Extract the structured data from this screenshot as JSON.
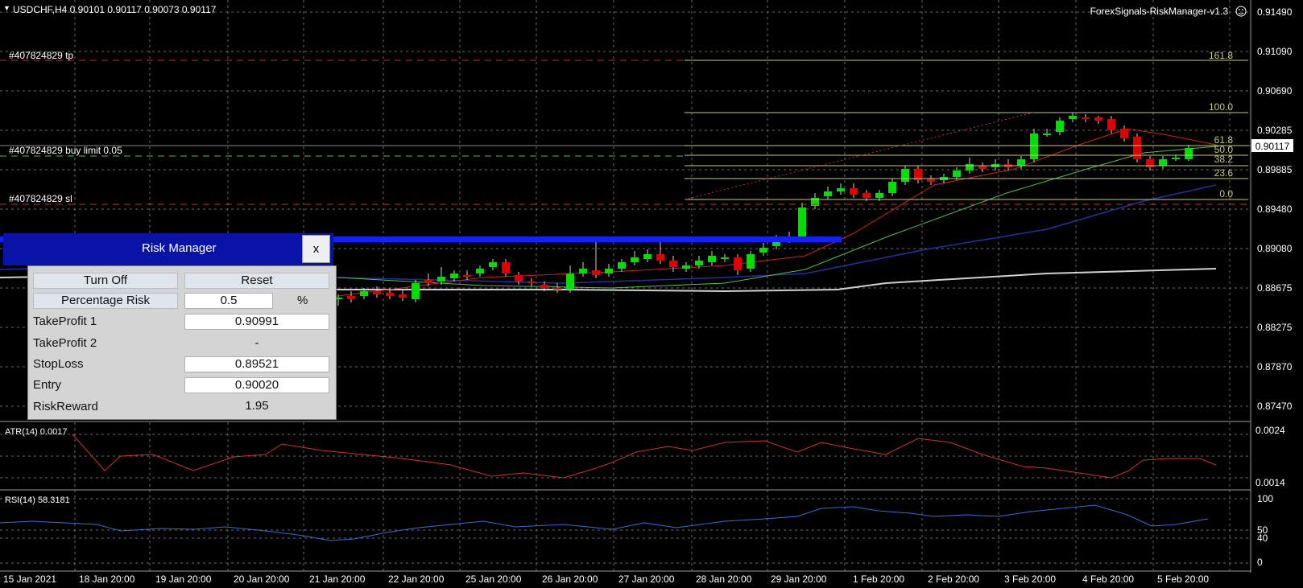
{
  "header": {
    "symbol_info": "USDCHF,H4  0.90101 0.90117 0.90073 0.90117",
    "indicator_name": "ForexSignals-RiskManager-v1.3"
  },
  "price_axis": {
    "labels": [
      "0.91490",
      "0.91090",
      "0.90690",
      "0.90285",
      "0.89885",
      "0.89480",
      "0.89080",
      "0.88675",
      "0.88275",
      "0.87870",
      "0.87470"
    ],
    "current_price": "0.90117"
  },
  "order_lines": {
    "tp": "#407824829 tp",
    "entry": "#407824829 buy limit 0.05",
    "sl": "#407824829 sl"
  },
  "fibonacci": [
    "161.8",
    "100.0",
    "61.8",
    "50.0",
    "38.2",
    "23.6",
    "0.0"
  ],
  "atr_panel": {
    "label": "ATR(14) 0.0017",
    "axis_top": "0.0024",
    "axis_bottom": "0.0014"
  },
  "rsi_panel": {
    "label": "RSI(14) 58.3181",
    "axis_labels": [
      "100",
      "50",
      "40",
      "0"
    ]
  },
  "time_axis": [
    "15 Jan 2021",
    "18 Jan 20:00",
    "19 Jan 20:00",
    "20 Jan 20:00",
    "21 Jan 20:00",
    "22 Jan 20:00",
    "25 Jan 20:00",
    "26 Jan 20:00",
    "27 Jan 20:00",
    "28 Jan 20:00",
    "29 Jan 20:00",
    "1 Feb 20:00",
    "2 Feb 20:00",
    "3 Feb 20:00",
    "4 Feb 20:00",
    "5 Feb 20:00"
  ],
  "risk_manager": {
    "title": "Risk Manager",
    "close_label": "x",
    "turn_off_label": "Turn Off",
    "reset_label": "Reset",
    "percentage_risk_label": "Percentage Risk",
    "percentage_risk_value": "0.5",
    "percent_sign": "%",
    "takeprofit1_label": "TakeProfit 1",
    "takeprofit1_value": "0.90991",
    "takeprofit2_label": "TakeProfit 2",
    "takeprofit2_value": "-",
    "stoploss_label": "StopLoss",
    "stoploss_value": "0.89521",
    "entry_label": "Entry",
    "entry_value": "0.90020",
    "riskreward_label": "RiskReward",
    "riskreward_value": "1.95"
  },
  "colors": {
    "bull": "#00e000",
    "bear": "#e00000",
    "grid": "#6a6a6a",
    "order_line": "#c03030",
    "fib": "#c8c878",
    "ma_red": "#d02020",
    "ma_green": "#50c050",
    "ma_navy": "#2030a0",
    "ma_white": "#d0d0d0",
    "atr_line": "#d03030",
    "rsi_line": "#3a6ad8",
    "panel_blue": "#0a13a8"
  }
}
